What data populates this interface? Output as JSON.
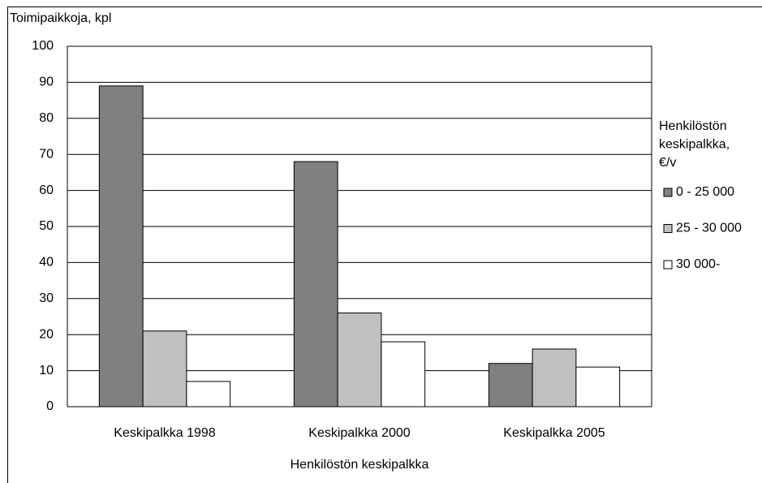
{
  "chart_data": {
    "type": "bar",
    "y_label": "Toimipaikkoja, kpl",
    "x_label": "Henkilöstön keskipalkka",
    "legend_title": [
      "Henkilöstön",
      "keskipalkka,",
      "€/v"
    ],
    "categories": [
      "Keskipalkka 1998",
      "Keskipalkka 2000",
      "Keskipalkka 2005"
    ],
    "series": [
      {
        "name": "0 - 25 000",
        "color": "#808080",
        "values": [
          89,
          68,
          12
        ]
      },
      {
        "name": "25 - 30 000",
        "color": "#c0c0c0",
        "values": [
          21,
          26,
          16
        ]
      },
      {
        "name": "30 000-",
        "color": "#ffffff",
        "values": [
          7,
          18,
          11
        ]
      }
    ],
    "ylim": [
      0,
      100
    ],
    "yticks": [
      0,
      10,
      20,
      30,
      40,
      50,
      60,
      70,
      80,
      90,
      100
    ],
    "grid": true,
    "legend": "right"
  }
}
